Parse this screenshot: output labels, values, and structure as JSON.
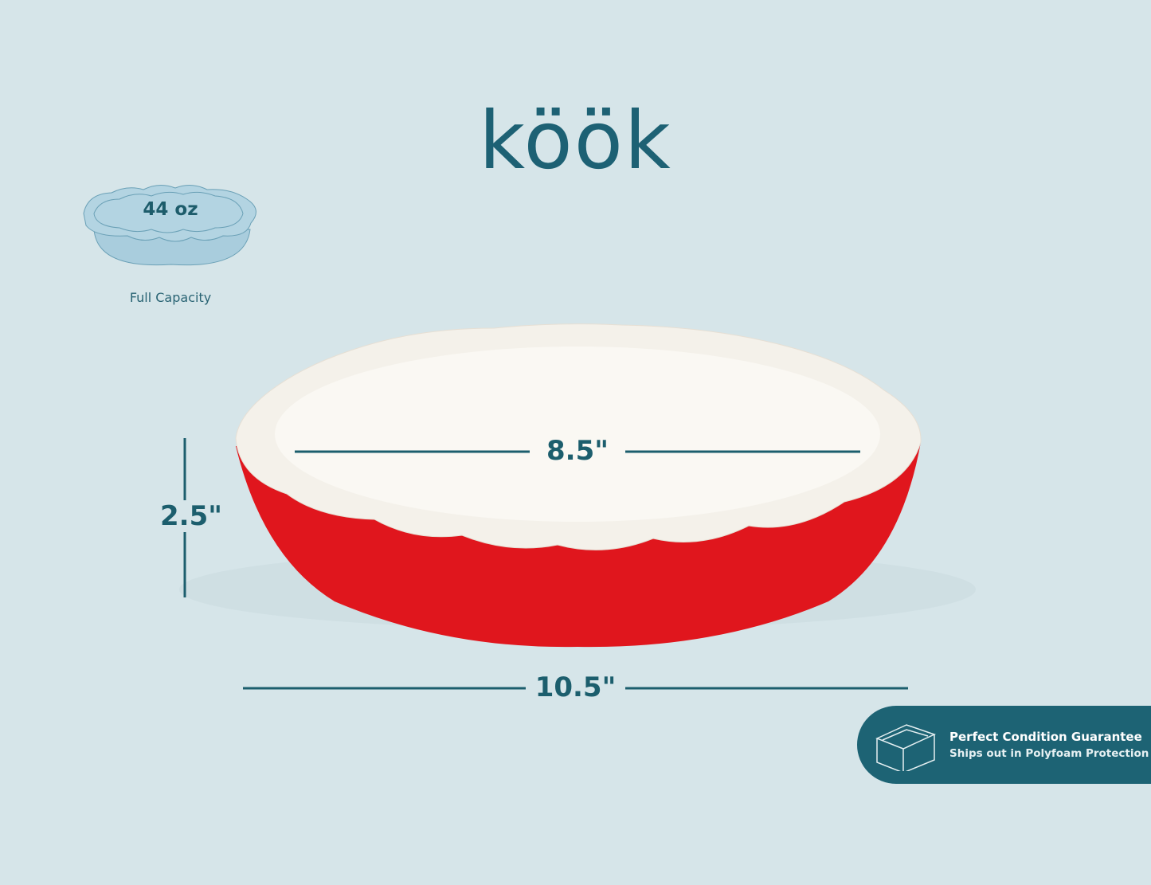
{
  "brand": {
    "logo_text": "köök"
  },
  "capacity": {
    "value": "44 oz",
    "label": "Full Capacity"
  },
  "dimensions": {
    "inner_diameter": "8.5\"",
    "height": "2.5\"",
    "outer_width": "10.5\""
  },
  "guarantee": {
    "title": "Perfect Condition Guarantee",
    "subtitle": "Ships out in Polyfoam Protection",
    "icon": "box-icon"
  },
  "colors": {
    "background": "#d6e5e9",
    "accent": "#1d6374",
    "dish": "#e0161d"
  }
}
